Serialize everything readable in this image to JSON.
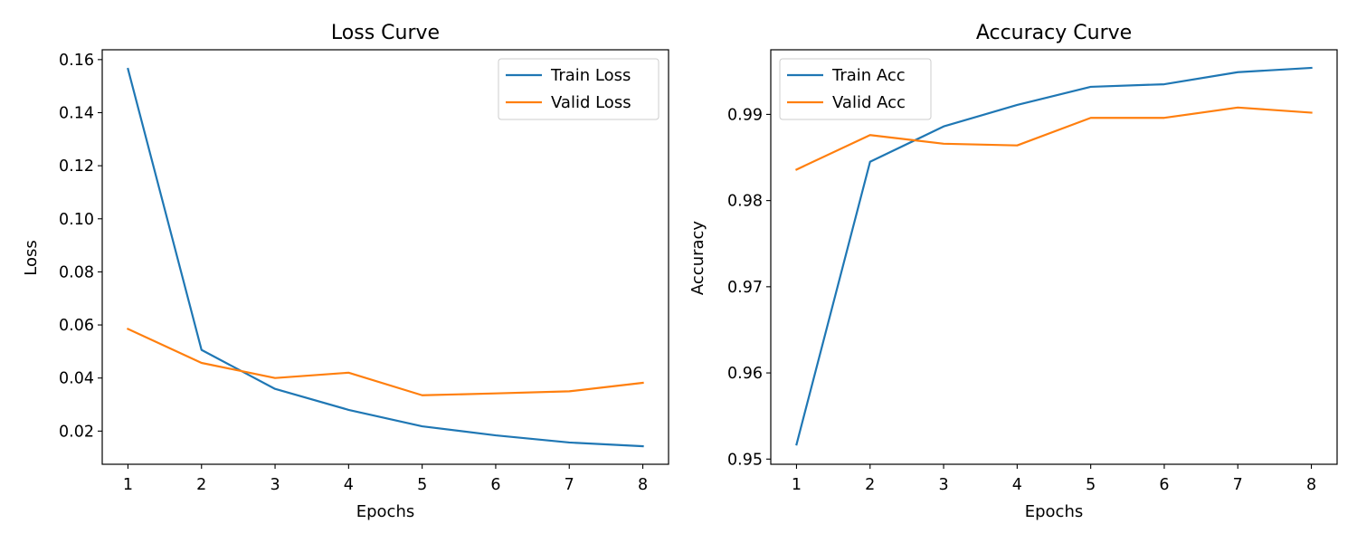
{
  "chart_data": [
    {
      "type": "line",
      "title": "Loss Curve",
      "xlabel": "Epochs",
      "ylabel": "Loss",
      "x": [
        1,
        2,
        3,
        4,
        5,
        6,
        7,
        8
      ],
      "xlim": [
        0.65,
        8.35
      ],
      "ylim": [
        0.0075,
        0.1637
      ],
      "xticks": [
        "1",
        "2",
        "3",
        "4",
        "5",
        "6",
        "7",
        "8"
      ],
      "yticks": [
        0.02,
        0.04,
        0.06,
        0.08,
        0.1,
        0.12,
        0.14,
        0.16
      ],
      "ytick_labels": [
        "0.02",
        "0.04",
        "0.06",
        "0.08",
        "0.10",
        "0.12",
        "0.14",
        "0.16"
      ],
      "grid": false,
      "legend_position": "top-right",
      "series": [
        {
          "name": "Train Loss",
          "color": "#1f77b4",
          "values": [
            0.1565,
            0.0506,
            0.0359,
            0.028,
            0.0218,
            0.0184,
            0.0157,
            0.0143
          ]
        },
        {
          "name": "Valid Loss",
          "color": "#ff7f0e",
          "values": [
            0.0585,
            0.0457,
            0.04,
            0.042,
            0.0335,
            0.0342,
            0.035,
            0.0382
          ]
        }
      ]
    },
    {
      "type": "line",
      "title": "Accuracy Curve",
      "xlabel": "Epochs",
      "ylabel": "Accuracy",
      "x": [
        1,
        2,
        3,
        4,
        5,
        6,
        7,
        8
      ],
      "xlim": [
        0.65,
        8.35
      ],
      "ylim": [
        0.9494,
        0.9975
      ],
      "xticks": [
        "1",
        "2",
        "3",
        "4",
        "5",
        "6",
        "7",
        "8"
      ],
      "yticks": [
        0.95,
        0.96,
        0.97,
        0.98,
        0.99
      ],
      "ytick_labels": [
        "0.95",
        "0.96",
        "0.97",
        "0.98",
        "0.99"
      ],
      "grid": false,
      "legend_position": "top-left",
      "series": [
        {
          "name": "Train Acc",
          "color": "#1f77b4",
          "values": [
            0.9517,
            0.9845,
            0.9886,
            0.9911,
            0.9932,
            0.9935,
            0.9949,
            0.9954
          ]
        },
        {
          "name": "Valid Acc",
          "color": "#ff7f0e",
          "values": [
            0.9836,
            0.9876,
            0.9866,
            0.9864,
            0.9896,
            0.9896,
            0.9908,
            0.9902
          ]
        }
      ]
    }
  ]
}
